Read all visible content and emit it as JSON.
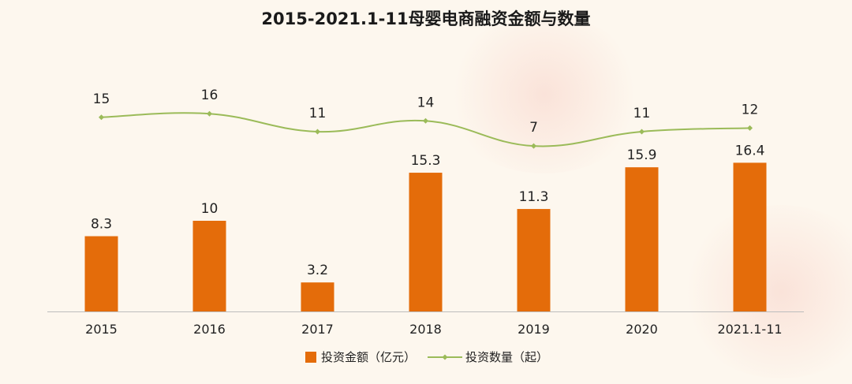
{
  "chart_data": {
    "type": "bar",
    "title": "2015-2021.1-11母婴电商融资金额与数量",
    "categories": [
      "2015",
      "2016",
      "2017",
      "2018",
      "2019",
      "2020",
      "2021.1-11"
    ],
    "series": [
      {
        "name": "投资金额（亿元）",
        "type": "bar",
        "color": "#e46c0a",
        "values": [
          8.3,
          10,
          3.2,
          15.3,
          11.3,
          15.9,
          16.4
        ],
        "labels": [
          "8.3",
          "10",
          "3.2",
          "15.3",
          "11.3",
          "15.9",
          "16.4"
        ]
      },
      {
        "name": "投资数量（起）",
        "type": "line",
        "color": "#9bbb59",
        "values": [
          15,
          16,
          11,
          14,
          7,
          11,
          12
        ],
        "labels": [
          "15",
          "16",
          "11",
          "14",
          "7",
          "11",
          "12"
        ]
      }
    ],
    "legend_position": "bottom",
    "grid": false
  }
}
